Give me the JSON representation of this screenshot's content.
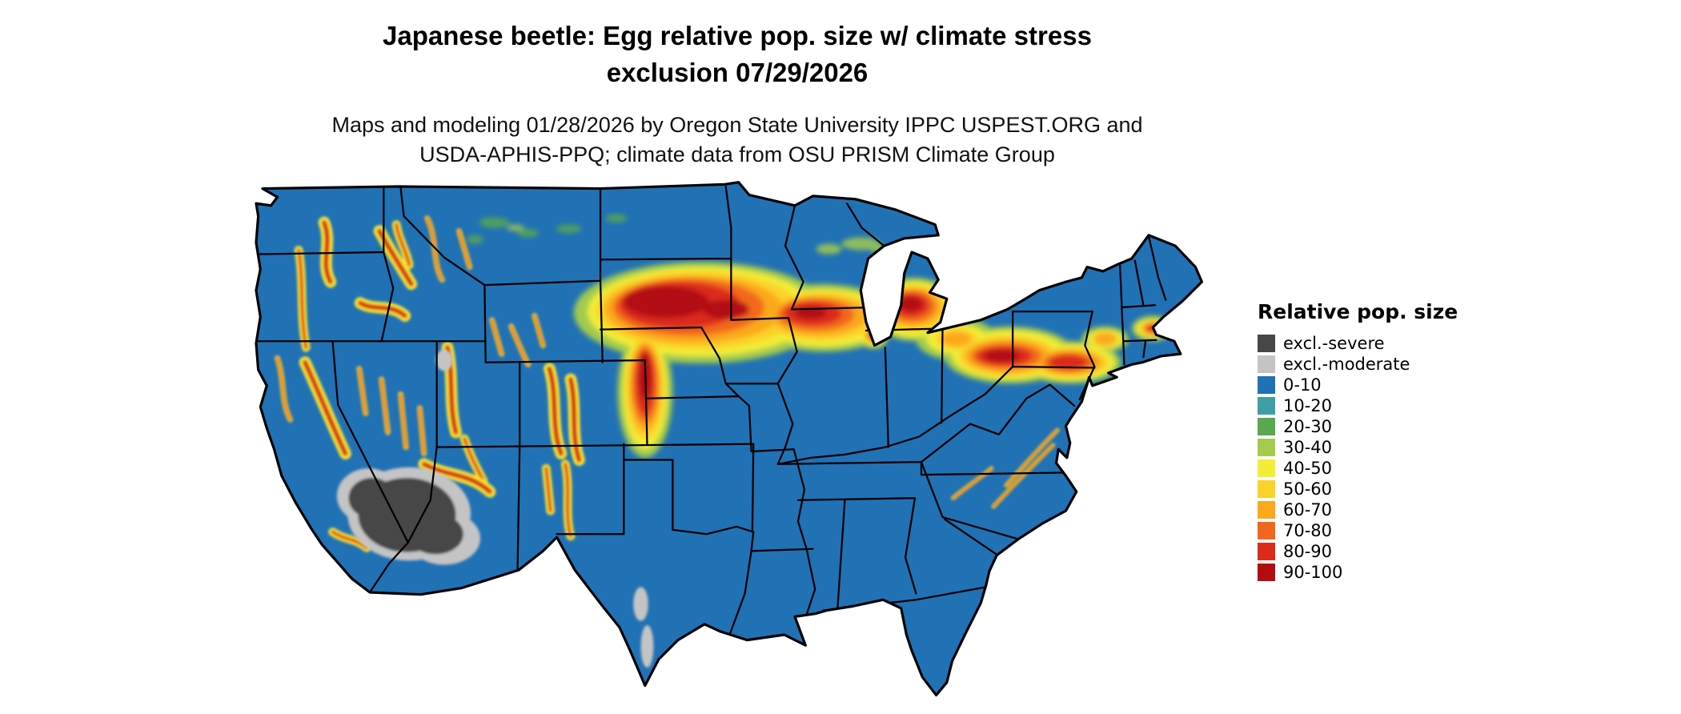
{
  "header": {
    "title_line1": "Japanese beetle: Egg relative pop. size w/ climate stress",
    "title_line2": "exclusion 07/29/2026",
    "subtitle_line1": "Maps and modeling 01/28/2026 by Oregon State University IPPC USPEST.ORG and",
    "subtitle_line2": "USDA-APHIS-PPQ; climate data from OSU PRISM Climate Group"
  },
  "map": {
    "region": "Contiguous United States"
  },
  "legend": {
    "title": "Relative pop. size",
    "items": [
      {
        "key": "excl_severe",
        "label": "excl.-severe",
        "color": "#474747"
      },
      {
        "key": "excl_moderate",
        "label": "excl.-moderate",
        "color": "#c4c4c4"
      },
      {
        "key": "r0_10",
        "label": "0-10",
        "color": "#2171b5"
      },
      {
        "key": "r10_20",
        "label": "10-20",
        "color": "#3f9fa5"
      },
      {
        "key": "r20_30",
        "label": "20-30",
        "color": "#59a84f"
      },
      {
        "key": "r30_40",
        "label": "30-40",
        "color": "#a3cb4e"
      },
      {
        "key": "r40_50",
        "label": "40-50",
        "color": "#f2ee35"
      },
      {
        "key": "r50_60",
        "label": "50-60",
        "color": "#fbd22a"
      },
      {
        "key": "r60_70",
        "label": "60-70",
        "color": "#fba81c"
      },
      {
        "key": "r70_80",
        "label": "70-80",
        "color": "#f2671f"
      },
      {
        "key": "r80_90",
        "label": "80-90",
        "color": "#dc2b1b"
      },
      {
        "key": "r90_100",
        "label": "90-100",
        "color": "#b30d12"
      }
    ]
  }
}
